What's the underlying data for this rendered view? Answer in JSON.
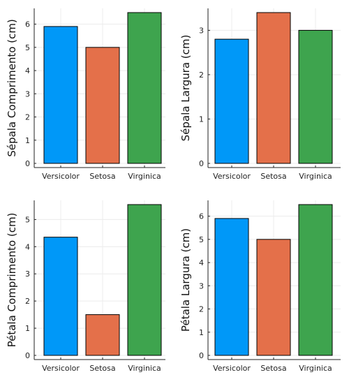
{
  "colors": {
    "series": [
      "#0098f8",
      "#e4704a",
      "#3ea44e"
    ],
    "grid": "#ececec",
    "axis": "#222222",
    "bar_edge": "#000000"
  },
  "chart_data": [
    {
      "type": "bar",
      "title": "",
      "xlabel": "",
      "ylabel": "Sépala Comprimento (cm)",
      "categories": [
        "Versicolor",
        "Setosa",
        "Virginica"
      ],
      "values": [
        5.9,
        5.0,
        6.5
      ],
      "ylim": [
        0,
        6.5
      ],
      "yticks": [
        0,
        1,
        2,
        3,
        4,
        5,
        6
      ],
      "grid": true,
      "legend": "none"
    },
    {
      "type": "bar",
      "title": "",
      "xlabel": "",
      "ylabel": "Sépala Largura (cm)",
      "categories": [
        "Versicolor",
        "Setosa",
        "Virginica"
      ],
      "values": [
        2.8,
        3.4,
        3.0
      ],
      "ylim": [
        0,
        3.4
      ],
      "yticks": [
        0,
        1,
        2,
        3
      ],
      "grid": true,
      "legend": "none"
    },
    {
      "type": "bar",
      "title": "",
      "xlabel": "",
      "ylabel": "Pétala Comprimento (cm)",
      "categories": [
        "Versicolor",
        "Setosa",
        "Virginica"
      ],
      "values": [
        4.35,
        1.5,
        5.55
      ],
      "ylim": [
        0,
        5.55
      ],
      "yticks": [
        0,
        1,
        2,
        3,
        4,
        5
      ],
      "grid": true,
      "legend": "none"
    },
    {
      "type": "bar",
      "title": "",
      "xlabel": "",
      "ylabel": "Pétala Largura (cm)",
      "categories": [
        "Versicolor",
        "Setosa",
        "Virginica"
      ],
      "values": [
        5.9,
        5.0,
        6.5
      ],
      "ylim": [
        0,
        6.5
      ],
      "yticks": [
        0,
        1,
        2,
        3,
        4,
        5,
        6
      ],
      "grid": true,
      "legend": "none"
    }
  ]
}
